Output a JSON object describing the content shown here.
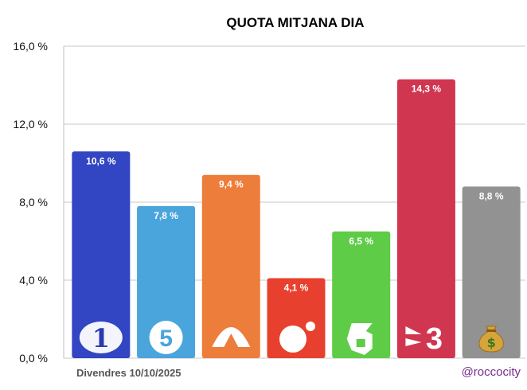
{
  "chart_data": {
    "type": "bar",
    "title": "QUOTA MITJANA DIA",
    "xlabel": "",
    "ylabel": "",
    "ylim": [
      0,
      16
    ],
    "yticks": [
      "0,0 %",
      "4,0 %",
      "8,0 %",
      "12,0 %",
      "16,0 %"
    ],
    "ytick_values": [
      0,
      4,
      8,
      12,
      16
    ],
    "grid": true,
    "categories": [
      "La 1",
      "Telecinco",
      "Antena 3",
      "Cuatro",
      "laSexta",
      "TV3",
      "Altres"
    ],
    "values": [
      10.6,
      7.8,
      9.4,
      4.1,
      6.5,
      14.3,
      8.8
    ],
    "value_labels": [
      "10,6 %",
      "7,8 %",
      "9,4 %",
      "4,1 %",
      "6,5 %",
      "14,3 %",
      "8,8 %"
    ],
    "colors": [
      "#3245c2",
      "#49a5dc",
      "#ed7d3a",
      "#e8402e",
      "#5fcc47",
      "#d03650",
      "#929292"
    ],
    "icons": [
      "la1-logo-icon",
      "telecinco-logo-icon",
      "antena3-logo-icon",
      "cuatro-logo-icon",
      "lasexta-logo-icon",
      "tv3-logo-icon",
      "money-bag-icon"
    ]
  },
  "footer": {
    "date": "Divendres 10/10/2025",
    "handle": "@roccocity"
  }
}
